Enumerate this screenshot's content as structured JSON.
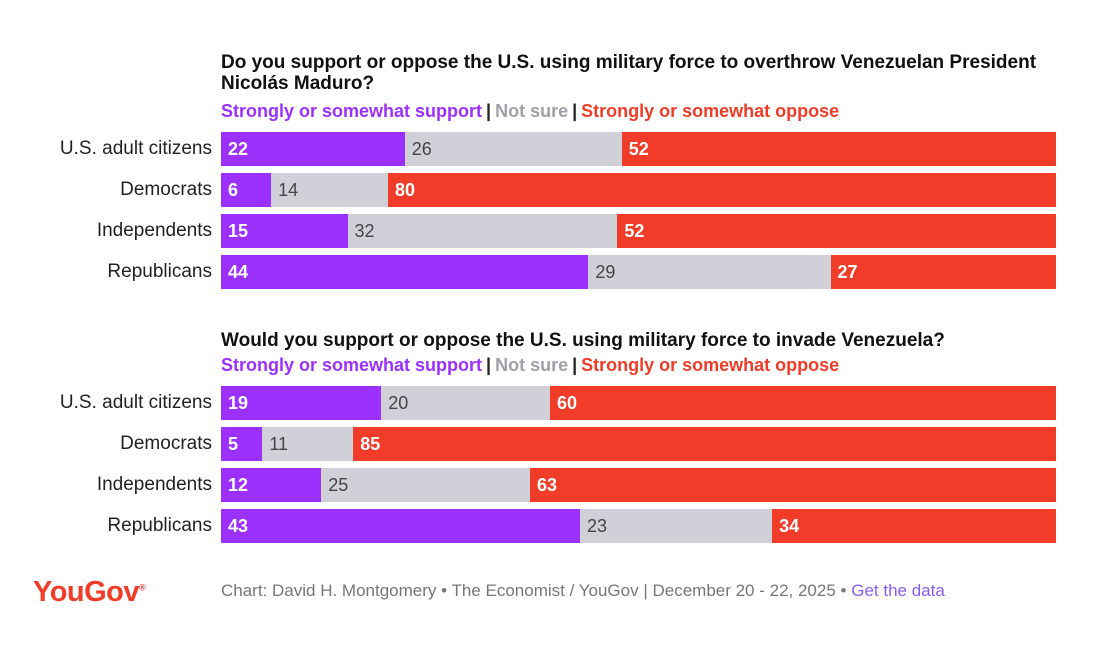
{
  "legend": {
    "support": "Strongly or somewhat support",
    "separator": "|",
    "not_sure": "Not sure",
    "oppose": "Strongly or somewhat oppose"
  },
  "colors": {
    "support": "#9b30ff",
    "not_sure": "#d0d1d8",
    "oppose": "#f03c28"
  },
  "chart_data": [
    {
      "type": "bar",
      "stacked": true,
      "orientation": "horizontal",
      "title": "Do you support or oppose the U.S. using military force to overthrow Venezuelan President Nicolás Maduro?",
      "categories": [
        "U.S. adult citizens",
        "Democrats",
        "Independents",
        "Republicans"
      ],
      "series": [
        {
          "name": "Strongly or somewhat support",
          "values": [
            22,
            6,
            15,
            44
          ]
        },
        {
          "name": "Not sure",
          "values": [
            26,
            14,
            32,
            29
          ]
        },
        {
          "name": "Strongly or somewhat oppose",
          "values": [
            52,
            80,
            52,
            27
          ]
        }
      ],
      "xlim": [
        0,
        100
      ]
    },
    {
      "type": "bar",
      "stacked": true,
      "orientation": "horizontal",
      "title": "Would you support or oppose the U.S. using military force to invade Venezuela?",
      "categories": [
        "U.S. adult citizens",
        "Democrats",
        "Independents",
        "Republicans"
      ],
      "series": [
        {
          "name": "Strongly or somewhat support",
          "values": [
            19,
            5,
            12,
            43
          ]
        },
        {
          "name": "Not sure",
          "values": [
            20,
            11,
            25,
            23
          ]
        },
        {
          "name": "Strongly or somewhat oppose",
          "values": [
            60,
            85,
            63,
            34
          ]
        }
      ],
      "xlim": [
        0,
        100
      ]
    }
  ],
  "footer": {
    "logo": "YouGov",
    "credit": "Chart: David H. Montgomery • The Economist / YouGov | December 20 - 22, 2025 •",
    "link": "Get the data"
  }
}
